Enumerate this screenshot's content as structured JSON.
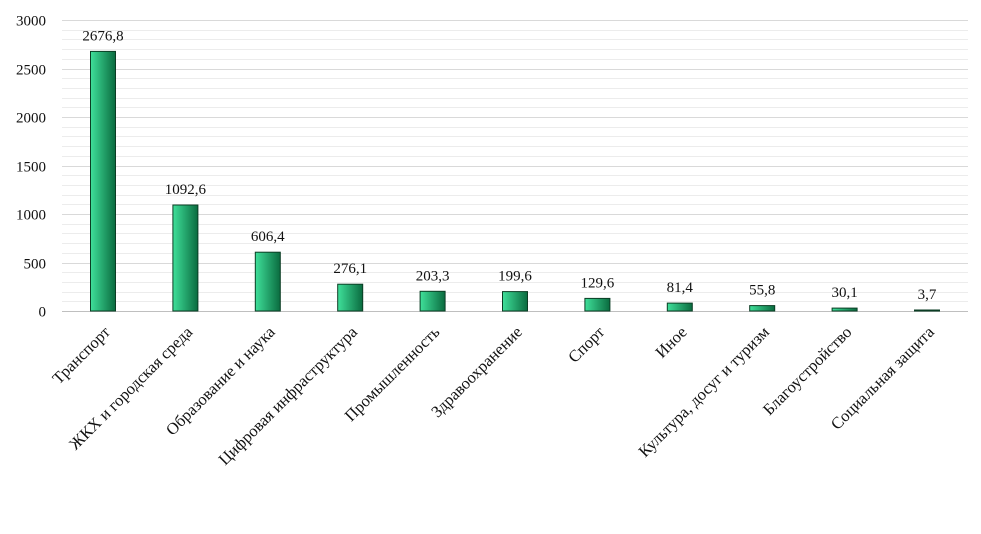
{
  "chart_data": {
    "type": "bar",
    "categories": [
      "Транспорт",
      "ЖКХ и городская среда",
      "Образование и наука",
      "Цифровая инфраструктура",
      "Промышленность",
      "Здравоохранение",
      "Спорт",
      "Иное",
      "Культура, досуг и туризм",
      "Благоустройство",
      "Социальная защита"
    ],
    "values": [
      2676.8,
      1092.6,
      606.4,
      276.1,
      203.3,
      199.6,
      129.6,
      81.4,
      55.8,
      30.1,
      3.7
    ],
    "data_labels": [
      "2676,8",
      "1092,6",
      "606,4",
      "276,1",
      "203,3",
      "199,6",
      "129,6",
      "81,4",
      "55,8",
      "30,1",
      "3,7"
    ],
    "yticks": [
      0,
      500,
      1000,
      1500,
      2000,
      2500,
      3000
    ],
    "ylim": [
      0,
      3000
    ],
    "title": "",
    "xlabel": "",
    "ylabel": "",
    "grid": true,
    "bar_color_light": "#3fe09a",
    "bar_color_dark": "#0a6b3f"
  }
}
